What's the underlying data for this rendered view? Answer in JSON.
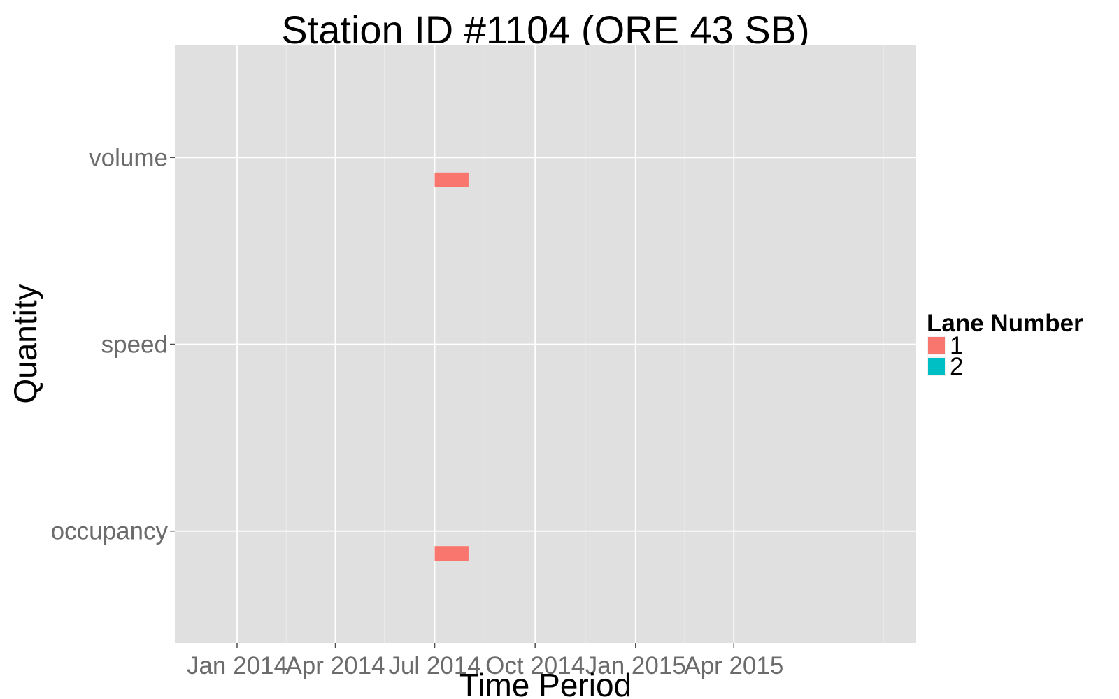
{
  "chart_data": {
    "type": "bar",
    "title": "Station ID #1104 (ORE 43 SB)",
    "xlabel": "Time Period",
    "ylabel": "Quantity",
    "x_type": "date",
    "xlim": [
      "2013-11-05",
      "2015-09-15"
    ],
    "x_ticks": [
      {
        "date": "2014-01-01",
        "label": "Jan 2014"
      },
      {
        "date": "2014-04-01",
        "label": "Apr 2014"
      },
      {
        "date": "2014-07-01",
        "label": "Jul 2014"
      },
      {
        "date": "2014-10-01",
        "label": "Oct 2014"
      },
      {
        "date": "2015-01-01",
        "label": "Jan 2015"
      },
      {
        "date": "2015-04-01",
        "label": "Apr 2015"
      }
    ],
    "x_minor_ticks": [
      "2014-02-15",
      "2014-05-16",
      "2014-08-16",
      "2014-11-16",
      "2015-02-15",
      "2015-05-16",
      "2015-08-16"
    ],
    "categories": [
      "occupancy",
      "speed",
      "volume"
    ],
    "legend": {
      "title": "Lane Number",
      "placement": "right",
      "entries": [
        {
          "label": "1",
          "color": "#F8766D"
        },
        {
          "label": "2",
          "color": "#00BFC4"
        }
      ]
    },
    "series": [
      {
        "name": "1",
        "color": "#F8766D",
        "segments": [
          {
            "category": "volume",
            "start": "2014-07-01",
            "end": "2014-08-01"
          },
          {
            "category": "occupancy",
            "start": "2014-07-01",
            "end": "2014-08-01"
          }
        ]
      },
      {
        "name": "2",
        "color": "#00BFC4",
        "segments": []
      }
    ],
    "grid": true,
    "panel_background": "#E0E0E0",
    "grid_color": "#FFFFFF"
  }
}
